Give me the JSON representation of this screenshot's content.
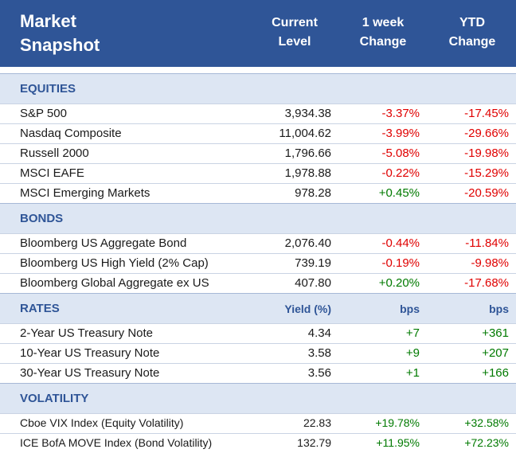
{
  "header": {
    "title_line1": "Market",
    "title_line2": "Snapshot",
    "col1_line1": "Current",
    "col1_line2": "Level",
    "col2_line1": "1 week",
    "col2_line2": "Change",
    "col3_line1": "YTD",
    "col3_line2": "Change"
  },
  "equities": {
    "label": "EQUITIES",
    "rows": [
      {
        "name": "S&P 500",
        "level": "3,934.38",
        "week": "-3.37%",
        "ytd": "-17.45%"
      },
      {
        "name": "Nasdaq Composite",
        "level": "11,004.62",
        "week": "-3.99%",
        "ytd": "-29.66%"
      },
      {
        "name": "Russell 2000",
        "level": "1,796.66",
        "week": "-5.08%",
        "ytd": "-19.98%"
      },
      {
        "name": "MSCI EAFE",
        "level": "1,978.88",
        "week": "-0.22%",
        "ytd": "-15.29%"
      },
      {
        "name": "MSCI Emerging Markets",
        "level": "978.28",
        "week": "+0.45%",
        "ytd": "-20.59%"
      }
    ]
  },
  "bonds": {
    "label": "BONDS",
    "rows": [
      {
        "name": "Bloomberg US Aggregate Bond",
        "level": "2,076.40",
        "week": "-0.44%",
        "ytd": "-11.84%"
      },
      {
        "name": "Bloomberg US High Yield (2% Cap)",
        "level": "739.19",
        "week": "-0.19%",
        "ytd": "-9.98%"
      },
      {
        "name": "Bloomberg Global Aggregate ex US",
        "level": "407.80",
        "week": "+0.20%",
        "ytd": "-17.68%"
      }
    ]
  },
  "rates": {
    "label": "RATES",
    "sub1": "Yield (%)",
    "sub2": "bps",
    "sub3": "bps",
    "rows": [
      {
        "name": "2-Year US Treasury Note",
        "level": "4.34",
        "week": "+7",
        "ytd": "+361"
      },
      {
        "name": "10-Year US Treasury Note",
        "level": "3.58",
        "week": "+9",
        "ytd": "+207"
      },
      {
        "name": "30-Year US Treasury Note",
        "level": "3.56",
        "week": "+1",
        "ytd": "+166"
      }
    ]
  },
  "volatility": {
    "label": "VOLATILITY",
    "rows": [
      {
        "name": "Cboe VIX Index (Equity Volatility)",
        "level": "22.83",
        "week": "+19.78%",
        "ytd": "+32.58%"
      },
      {
        "name": "ICE BofA MOVE Index (Bond Volatility)",
        "level": "132.79",
        "week": "+11.95%",
        "ytd": "+72.23%"
      }
    ]
  },
  "colors": {
    "header_bg": "#2f5597",
    "section_bg": "#dde6f3",
    "negative": "#e00000",
    "positive": "#007a00"
  }
}
